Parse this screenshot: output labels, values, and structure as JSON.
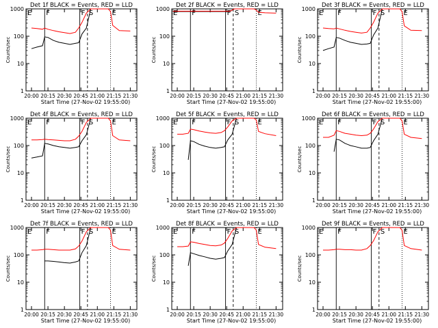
{
  "shared": {
    "ylabel": "Counts/sec",
    "xlabel": "Start Time (27-Nov-02 19:55:00)",
    "x_ticks": [
      "20:00",
      "20:15",
      "20:30",
      "20:45",
      "21:00",
      "21:15",
      "21:30"
    ],
    "y_ticks": [
      "1",
      "10",
      "100",
      "1000"
    ],
    "colors": {
      "events": "#000000",
      "lld": "#ff0000"
    },
    "event_marks": {
      "E": [
        "19:55",
        "21:12"
      ],
      "F": [
        "20:12",
        "20:44"
      ],
      "S": [
        "20:51"
      ]
    }
  },
  "chart_data": [
    {
      "id": "det1f",
      "type": "line",
      "title": "Det 1f BLACK = Events, RED = LLD",
      "ylim": [
        1,
        1000
      ],
      "log_y": true,
      "x_labels": [
        "20:00",
        "20:05",
        "20:10",
        "20:12",
        "20:15",
        "20:20",
        "20:25",
        "20:30",
        "20:35",
        "20:40",
        "20:43",
        "20:46",
        "20:50",
        "20:54",
        "21:10",
        "21:12",
        "21:14",
        "21:20",
        "21:30"
      ],
      "series": [
        {
          "color_key": "events",
          "values": [
            35,
            40,
            45,
            95,
            90,
            70,
            60,
            55,
            50,
            55,
            58,
            120,
            200,
            1000,
            1000,
            null,
            null,
            null,
            null
          ]
        },
        {
          "color_key": "lld",
          "values": [
            200,
            190,
            180,
            200,
            180,
            160,
            145,
            135,
            125,
            140,
            200,
            320,
            700,
            1000,
            1000,
            800,
            250,
            160,
            155
          ]
        }
      ]
    },
    {
      "id": "det2f",
      "type": "line",
      "title": "Det 2f BLACK = Events, RED = LLD",
      "ylim": [
        1,
        1000
      ],
      "log_y": true,
      "x_labels": [
        "19:56",
        "20:00",
        "20:10",
        "20:20",
        "20:30",
        "20:40",
        "20:48",
        "20:52",
        "21:10",
        "21:12",
        "21:14",
        "21:20",
        "21:30"
      ],
      "series": [
        {
          "color_key": "events",
          "values": [
            800,
            800,
            800,
            800,
            800,
            800,
            800,
            1000,
            1000,
            null,
            null,
            null,
            null
          ]
        },
        {
          "color_key": "lld",
          "values": [
            820,
            820,
            820,
            820,
            820,
            820,
            820,
            1000,
            1000,
            900,
            750,
            720,
            700
          ]
        }
      ]
    },
    {
      "id": "det3f",
      "type": "line",
      "title": "Det 3f BLACK = Events, RED = LLD",
      "ylim": [
        1,
        1000
      ],
      "log_y": true,
      "x_labels": [
        "20:00",
        "20:05",
        "20:10",
        "20:12",
        "20:15",
        "20:20",
        "20:25",
        "20:30",
        "20:35",
        "20:40",
        "20:43",
        "20:46",
        "20:50",
        "20:54",
        "21:10",
        "21:12",
        "21:14",
        "21:20",
        "21:30"
      ],
      "series": [
        {
          "color_key": "events",
          "values": [
            30,
            35,
            40,
            90,
            85,
            70,
            60,
            55,
            50,
            52,
            55,
            110,
            200,
            1000,
            1000,
            null,
            null,
            null,
            null
          ]
        },
        {
          "color_key": "lld",
          "values": [
            200,
            190,
            185,
            200,
            185,
            165,
            150,
            140,
            130,
            140,
            200,
            320,
            700,
            1000,
            1000,
            800,
            240,
            165,
            160
          ]
        }
      ]
    },
    {
      "id": "det4f",
      "type": "line",
      "title": "Det 4f BLACK = Events, RED = LLD",
      "ylim": [
        1,
        1000
      ],
      "log_y": true,
      "x_labels": [
        "20:00",
        "20:05",
        "20:10",
        "20:12",
        "20:15",
        "20:20",
        "20:25",
        "20:30",
        "20:35",
        "20:40",
        "20:43",
        "20:46",
        "20:50",
        "20:54",
        "21:10",
        "21:12",
        "21:14",
        "21:20",
        "21:30"
      ],
      "series": [
        {
          "color_key": "events",
          "values": [
            35,
            38,
            42,
            120,
            115,
            100,
            90,
            85,
            80,
            85,
            90,
            150,
            250,
            1000,
            1000,
            null,
            null,
            null,
            null
          ]
        },
        {
          "color_key": "lld",
          "values": [
            160,
            160,
            165,
            170,
            165,
            160,
            155,
            150,
            150,
            170,
            220,
            330,
            700,
            1000,
            1000,
            800,
            230,
            160,
            150
          ]
        }
      ]
    },
    {
      "id": "det5f",
      "type": "line",
      "title": "Det 5f BLACK = Events, RED = LLD",
      "ylim": [
        1,
        1000
      ],
      "log_y": true,
      "x_labels": [
        "20:00",
        "20:05",
        "20:10",
        "20:12",
        "20:15",
        "20:20",
        "20:25",
        "20:30",
        "20:35",
        "20:40",
        "20:43",
        "20:46",
        "20:50",
        "20:54",
        "21:10",
        "21:12",
        "21:14",
        "21:20",
        "21:30"
      ],
      "series": [
        {
          "color_key": "events",
          "values": [
            null,
            null,
            30,
            150,
            140,
            110,
            95,
            85,
            80,
            85,
            90,
            160,
            260,
            1000,
            1000,
            null,
            null,
            null,
            null
          ]
        },
        {
          "color_key": "lld",
          "values": [
            260,
            260,
            280,
            400,
            380,
            340,
            310,
            290,
            280,
            300,
            350,
            480,
            800,
            1000,
            1000,
            850,
            330,
            270,
            230
          ]
        }
      ]
    },
    {
      "id": "det6f",
      "type": "line",
      "title": "Det 6f BLACK = Events, RED = LLD",
      "ylim": [
        1,
        1000
      ],
      "log_y": true,
      "x_labels": [
        "20:00",
        "20:05",
        "20:10",
        "20:12",
        "20:15",
        "20:20",
        "20:25",
        "20:30",
        "20:35",
        "20:40",
        "20:43",
        "20:46",
        "20:50",
        "20:54",
        "21:10",
        "21:12",
        "21:14",
        "21:20",
        "21:30"
      ],
      "series": [
        {
          "color_key": "events",
          "values": [
            null,
            null,
            60,
            170,
            160,
            120,
            100,
            90,
            80,
            80,
            85,
            150,
            260,
            1000,
            1000,
            null,
            null,
            null,
            null
          ]
        },
        {
          "color_key": "lld",
          "values": [
            200,
            200,
            240,
            350,
            330,
            280,
            260,
            240,
            230,
            240,
            280,
            400,
            750,
            1000,
            1000,
            800,
            260,
            200,
            180
          ]
        }
      ]
    },
    {
      "id": "det7f",
      "type": "line",
      "title": "Det 7f BLACK = Events, RED = LLD",
      "ylim": [
        1,
        1000
      ],
      "log_y": true,
      "x_labels": [
        "20:00",
        "20:05",
        "20:10",
        "20:12",
        "20:15",
        "20:20",
        "20:25",
        "20:30",
        "20:35",
        "20:40",
        "20:43",
        "20:46",
        "20:50",
        "20:54",
        "21:10",
        "21:12",
        "21:14",
        "21:20",
        "21:30"
      ],
      "series": [
        {
          "color_key": "events",
          "values": [
            null,
            null,
            null,
            60,
            60,
            58,
            55,
            52,
            50,
            55,
            60,
            120,
            220,
            1000,
            1000,
            null,
            null,
            null,
            null
          ]
        },
        {
          "color_key": "lld",
          "values": [
            150,
            150,
            155,
            160,
            160,
            155,
            150,
            150,
            150,
            165,
            210,
            320,
            700,
            1000,
            1000,
            800,
            220,
            160,
            150
          ]
        }
      ]
    },
    {
      "id": "det8f",
      "type": "line",
      "title": "Det 8f BLACK = Events, RED = LLD",
      "ylim": [
        1,
        1000
      ],
      "log_y": true,
      "x_labels": [
        "20:00",
        "20:05",
        "20:10",
        "20:12",
        "20:15",
        "20:20",
        "20:25",
        "20:30",
        "20:35",
        "20:40",
        "20:43",
        "20:46",
        "20:50",
        "20:54",
        "21:10",
        "21:12",
        "21:14",
        "21:20",
        "21:30"
      ],
      "series": [
        {
          "color_key": "events",
          "values": [
            null,
            null,
            40,
            120,
            110,
            95,
            85,
            75,
            70,
            75,
            80,
            140,
            240,
            1000,
            1000,
            null,
            null,
            null,
            null
          ]
        },
        {
          "color_key": "lld",
          "values": [
            200,
            200,
            210,
            300,
            290,
            260,
            240,
            220,
            215,
            230,
            270,
            400,
            750,
            1000,
            1000,
            800,
            240,
            190,
            170
          ]
        }
      ]
    },
    {
      "id": "det9f",
      "type": "line",
      "title": "Det 9f BLACK = Events, RED = LLD",
      "ylim": [
        1,
        1000
      ],
      "log_y": true,
      "x_labels": [
        "20:00",
        "20:05",
        "20:10",
        "20:12",
        "20:15",
        "20:20",
        "20:25",
        "20:30",
        "20:35",
        "20:40",
        "20:43",
        "20:46",
        "20:50",
        "20:54",
        "21:10",
        "21:12",
        "21:14",
        "21:20",
        "21:30"
      ],
      "series": [
        {
          "color_key": "events",
          "values": [
            null,
            null,
            null,
            null,
            null,
            null,
            null,
            null,
            null,
            null,
            null,
            null,
            null,
            null,
            null,
            null,
            null,
            null,
            null
          ]
        },
        {
          "color_key": "lld",
          "values": [
            150,
            150,
            155,
            160,
            160,
            155,
            155,
            150,
            150,
            170,
            220,
            330,
            700,
            1000,
            1000,
            800,
            220,
            170,
            150
          ]
        }
      ]
    }
  ]
}
